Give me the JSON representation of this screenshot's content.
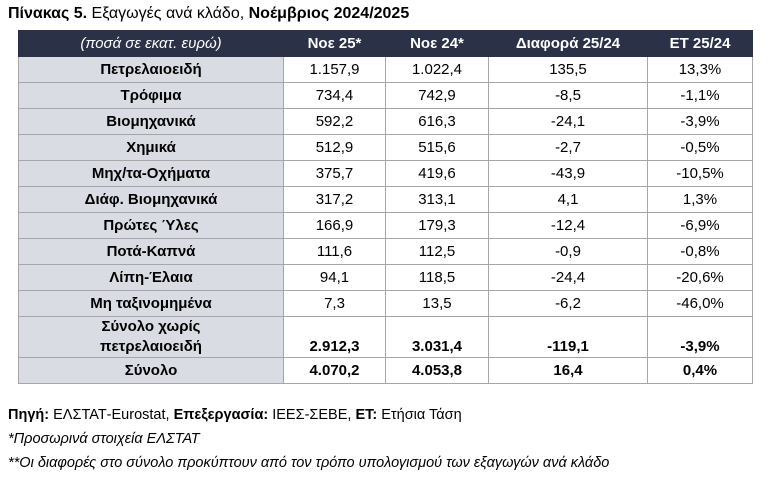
{
  "header": {
    "title": {
      "number": "Πίνακας 5.",
      "text": " Εξαγωγές ανά κλάδο, ",
      "period": "Νοέμβριος 2024/2025"
    }
  },
  "table": {
    "columns": [
      "(ποσά σε εκατ. ευρώ)",
      "Νοε 25*",
      "Νοε 24*",
      "Διαφορά 25/24",
      "ΕΤ 25/24"
    ],
    "rows": [
      [
        "Πετρελαιοειδή",
        "1.157,9",
        "1.022,4",
        "135,5",
        "13,3%"
      ],
      [
        "Τρόφιμα",
        "734,4",
        "742,9",
        "-8,5",
        "-1,1%"
      ],
      [
        "Βιομηχανικά",
        "592,2",
        "616,3",
        "-24,1",
        "-3,9%"
      ],
      [
        "Χημικά",
        "512,9",
        "515,6",
        "-2,7",
        "-0,5%"
      ],
      [
        "Μηχ/τα-Οχήματα",
        "375,7",
        "419,6",
        "-43,9",
        "-10,5%"
      ],
      [
        "Διάφ. Βιομηχανικά",
        "317,2",
        "313,1",
        "4,1",
        "1,3%"
      ],
      [
        "Πρώτες Ύλες",
        "166,9",
        "179,3",
        "-12,4",
        "-6,9%"
      ],
      [
        "Ποτά-Καπνά",
        "111,6",
        "112,5",
        "-0,9",
        "-0,8%"
      ],
      [
        "Λίπη-Έλαια",
        "94,1",
        "118,5",
        "-24,4",
        "-20,6%"
      ],
      [
        "Μη ταξινομημένα",
        "7,3",
        "13,5",
        "-6,2",
        "-46,0%"
      ]
    ],
    "totals": [
      [
        "Σύνολο χωρίς πετρελαιοειδή",
        "2.912,3",
        "3.031,4",
        "-119,1",
        "-3,9%"
      ],
      [
        "Σύνολο",
        "4.070,2",
        "4.053,8",
        "16,4",
        "0,4%"
      ]
    ]
  },
  "footer": {
    "source": [
      "Πηγή:",
      " ΕΛΣΤΑΤ-Eurostat, ",
      "Επεξεργασία:",
      " ΙΕΕΣ-ΣΕΒΕ, ",
      "ΕΤ:",
      " Ετήσια Τάση"
    ],
    "notes": [
      "*Προσωρινά στοιχεία ΕΛΣΤΑΤ",
      "**Οι διαφορές στο σύνολο προκύπτουν από τον τρόπο υπολογισμού των εξαγωγών ανά κλάδο"
    ]
  }
}
